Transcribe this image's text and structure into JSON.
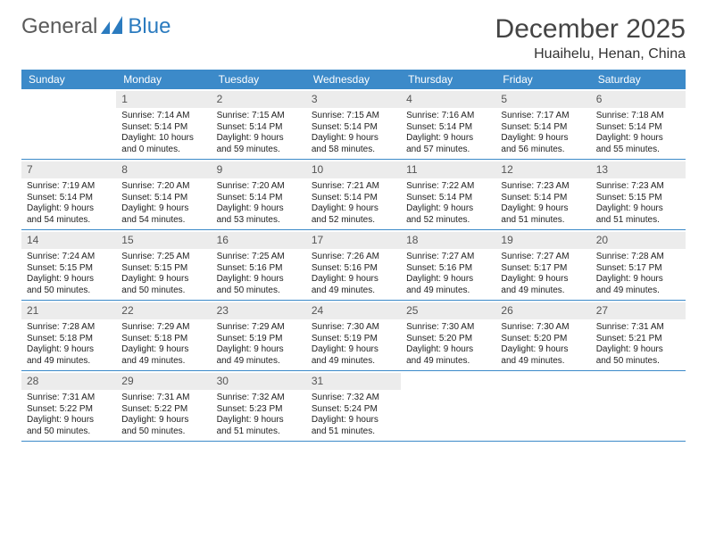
{
  "brand": {
    "part1": "General",
    "part2": "Blue"
  },
  "title": "December 2025",
  "location": "Huaihelu, Henan, China",
  "colors": {
    "header_blue": "#3c8ac9",
    "gray_bar": "#ececec",
    "logo_blue": "#2b7bbf",
    "logo_gray": "#5a5a5a",
    "text": "#222222",
    "background": "#ffffff"
  },
  "day_headers": [
    "Sunday",
    "Monday",
    "Tuesday",
    "Wednesday",
    "Thursday",
    "Friday",
    "Saturday"
  ],
  "weeks": [
    [
      null,
      {
        "n": "1",
        "sunrise": "Sunrise: 7:14 AM",
        "sunset": "Sunset: 5:14 PM",
        "daylight": "Daylight: 10 hours and 0 minutes."
      },
      {
        "n": "2",
        "sunrise": "Sunrise: 7:15 AM",
        "sunset": "Sunset: 5:14 PM",
        "daylight": "Daylight: 9 hours and 59 minutes."
      },
      {
        "n": "3",
        "sunrise": "Sunrise: 7:15 AM",
        "sunset": "Sunset: 5:14 PM",
        "daylight": "Daylight: 9 hours and 58 minutes."
      },
      {
        "n": "4",
        "sunrise": "Sunrise: 7:16 AM",
        "sunset": "Sunset: 5:14 PM",
        "daylight": "Daylight: 9 hours and 57 minutes."
      },
      {
        "n": "5",
        "sunrise": "Sunrise: 7:17 AM",
        "sunset": "Sunset: 5:14 PM",
        "daylight": "Daylight: 9 hours and 56 minutes."
      },
      {
        "n": "6",
        "sunrise": "Sunrise: 7:18 AM",
        "sunset": "Sunset: 5:14 PM",
        "daylight": "Daylight: 9 hours and 55 minutes."
      }
    ],
    [
      {
        "n": "7",
        "sunrise": "Sunrise: 7:19 AM",
        "sunset": "Sunset: 5:14 PM",
        "daylight": "Daylight: 9 hours and 54 minutes."
      },
      {
        "n": "8",
        "sunrise": "Sunrise: 7:20 AM",
        "sunset": "Sunset: 5:14 PM",
        "daylight": "Daylight: 9 hours and 54 minutes."
      },
      {
        "n": "9",
        "sunrise": "Sunrise: 7:20 AM",
        "sunset": "Sunset: 5:14 PM",
        "daylight": "Daylight: 9 hours and 53 minutes."
      },
      {
        "n": "10",
        "sunrise": "Sunrise: 7:21 AM",
        "sunset": "Sunset: 5:14 PM",
        "daylight": "Daylight: 9 hours and 52 minutes."
      },
      {
        "n": "11",
        "sunrise": "Sunrise: 7:22 AM",
        "sunset": "Sunset: 5:14 PM",
        "daylight": "Daylight: 9 hours and 52 minutes."
      },
      {
        "n": "12",
        "sunrise": "Sunrise: 7:23 AM",
        "sunset": "Sunset: 5:14 PM",
        "daylight": "Daylight: 9 hours and 51 minutes."
      },
      {
        "n": "13",
        "sunrise": "Sunrise: 7:23 AM",
        "sunset": "Sunset: 5:15 PM",
        "daylight": "Daylight: 9 hours and 51 minutes."
      }
    ],
    [
      {
        "n": "14",
        "sunrise": "Sunrise: 7:24 AM",
        "sunset": "Sunset: 5:15 PM",
        "daylight": "Daylight: 9 hours and 50 minutes."
      },
      {
        "n": "15",
        "sunrise": "Sunrise: 7:25 AM",
        "sunset": "Sunset: 5:15 PM",
        "daylight": "Daylight: 9 hours and 50 minutes."
      },
      {
        "n": "16",
        "sunrise": "Sunrise: 7:25 AM",
        "sunset": "Sunset: 5:16 PM",
        "daylight": "Daylight: 9 hours and 50 minutes."
      },
      {
        "n": "17",
        "sunrise": "Sunrise: 7:26 AM",
        "sunset": "Sunset: 5:16 PM",
        "daylight": "Daylight: 9 hours and 49 minutes."
      },
      {
        "n": "18",
        "sunrise": "Sunrise: 7:27 AM",
        "sunset": "Sunset: 5:16 PM",
        "daylight": "Daylight: 9 hours and 49 minutes."
      },
      {
        "n": "19",
        "sunrise": "Sunrise: 7:27 AM",
        "sunset": "Sunset: 5:17 PM",
        "daylight": "Daylight: 9 hours and 49 minutes."
      },
      {
        "n": "20",
        "sunrise": "Sunrise: 7:28 AM",
        "sunset": "Sunset: 5:17 PM",
        "daylight": "Daylight: 9 hours and 49 minutes."
      }
    ],
    [
      {
        "n": "21",
        "sunrise": "Sunrise: 7:28 AM",
        "sunset": "Sunset: 5:18 PM",
        "daylight": "Daylight: 9 hours and 49 minutes."
      },
      {
        "n": "22",
        "sunrise": "Sunrise: 7:29 AM",
        "sunset": "Sunset: 5:18 PM",
        "daylight": "Daylight: 9 hours and 49 minutes."
      },
      {
        "n": "23",
        "sunrise": "Sunrise: 7:29 AM",
        "sunset": "Sunset: 5:19 PM",
        "daylight": "Daylight: 9 hours and 49 minutes."
      },
      {
        "n": "24",
        "sunrise": "Sunrise: 7:30 AM",
        "sunset": "Sunset: 5:19 PM",
        "daylight": "Daylight: 9 hours and 49 minutes."
      },
      {
        "n": "25",
        "sunrise": "Sunrise: 7:30 AM",
        "sunset": "Sunset: 5:20 PM",
        "daylight": "Daylight: 9 hours and 49 minutes."
      },
      {
        "n": "26",
        "sunrise": "Sunrise: 7:30 AM",
        "sunset": "Sunset: 5:20 PM",
        "daylight": "Daylight: 9 hours and 49 minutes."
      },
      {
        "n": "27",
        "sunrise": "Sunrise: 7:31 AM",
        "sunset": "Sunset: 5:21 PM",
        "daylight": "Daylight: 9 hours and 50 minutes."
      }
    ],
    [
      {
        "n": "28",
        "sunrise": "Sunrise: 7:31 AM",
        "sunset": "Sunset: 5:22 PM",
        "daylight": "Daylight: 9 hours and 50 minutes."
      },
      {
        "n": "29",
        "sunrise": "Sunrise: 7:31 AM",
        "sunset": "Sunset: 5:22 PM",
        "daylight": "Daylight: 9 hours and 50 minutes."
      },
      {
        "n": "30",
        "sunrise": "Sunrise: 7:32 AM",
        "sunset": "Sunset: 5:23 PM",
        "daylight": "Daylight: 9 hours and 51 minutes."
      },
      {
        "n": "31",
        "sunrise": "Sunrise: 7:32 AM",
        "sunset": "Sunset: 5:24 PM",
        "daylight": "Daylight: 9 hours and 51 minutes."
      },
      null,
      null,
      null
    ]
  ]
}
